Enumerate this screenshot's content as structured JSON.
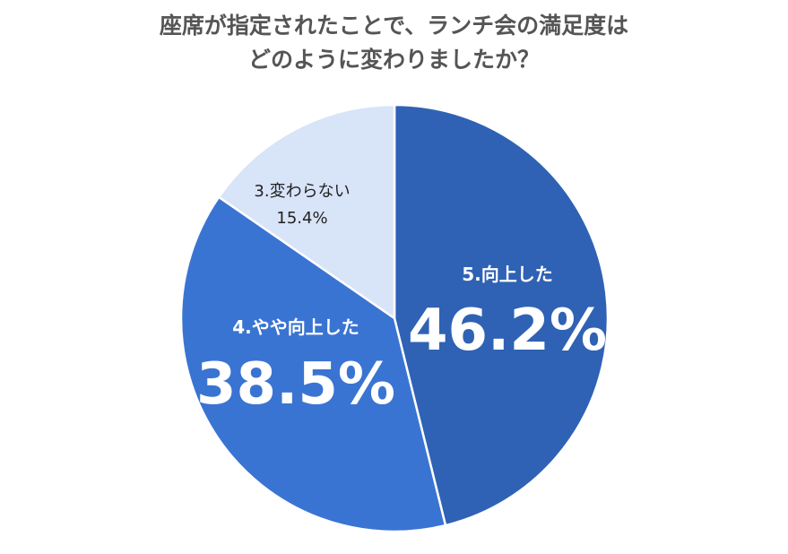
{
  "chart_data": {
    "type": "pie",
    "title": "座席が指定されたことで、ランチ会の満足度は",
    "subtitle": "どのように変わりましたか？",
    "slices": [
      {
        "label": "5.向上した",
        "value": 46.2,
        "display": "46.2%",
        "color": "#2f62b4"
      },
      {
        "label": "4.やや向上した",
        "value": 38.5,
        "display": "38.5%",
        "color": "#3a74d3"
      },
      {
        "label": "3.変わらない",
        "value": 15.4,
        "display": "15.4%",
        "color": "#d8e4f8"
      }
    ],
    "start_angle": "12 o'clock",
    "direction": "clockwise",
    "legend": "none"
  }
}
